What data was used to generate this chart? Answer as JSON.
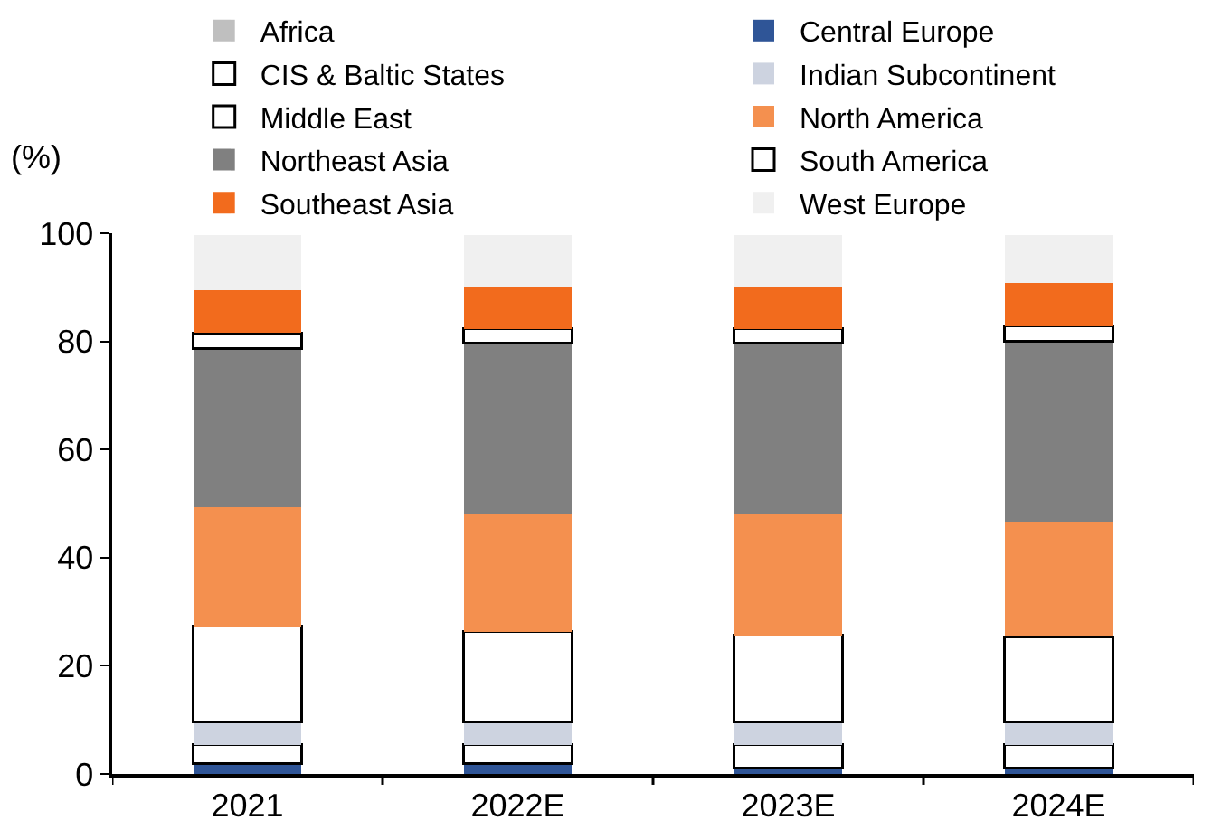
{
  "chart_data": {
    "type": "bar",
    "stacked": true,
    "ylabel": "(%)",
    "categories": [
      "2021",
      "2022E",
      "2023E",
      "2024E"
    ],
    "series": [
      {
        "name": "Africa",
        "color": "#bfbfbf",
        "values": [
          null,
          null,
          null,
          null
        ]
      },
      {
        "name": "Central Europe",
        "color": "#2f5597",
        "values": [
          2.0,
          2.0,
          1.1,
          1.1
        ]
      },
      {
        "name": "CIS & Baltic States",
        "color": "#ffffff",
        "values": [
          3.4,
          3.4,
          4.3,
          4.3
        ]
      },
      {
        "name": "Indian Subcontinent",
        "color": "#cdd3e0",
        "values": [
          4.3,
          4.3,
          4.3,
          4.3
        ]
      },
      {
        "name": "Middle East",
        "color": "#ffffff",
        "values": [
          17.6,
          16.6,
          15.9,
          15.7
        ]
      },
      {
        "name": "North America",
        "color": "#f4904f",
        "values": [
          22.1,
          21.7,
          22.4,
          21.3
        ]
      },
      {
        "name": "Northeast Asia",
        "color": "#808080",
        "values": [
          29.3,
          31.7,
          31.7,
          33.4
        ]
      },
      {
        "name": "South America",
        "color": "#ffffff",
        "values": [
          2.9,
          2.6,
          2.6,
          2.7
        ]
      },
      {
        "name": "Southeast Asia",
        "color": "#f26b1d",
        "values": [
          7.8,
          7.8,
          7.8,
          8.0
        ]
      },
      {
        "name": "West Europe",
        "color": "#f0f0f0",
        "values": [
          10.3,
          9.6,
          9.6,
          8.9
        ]
      }
    ],
    "ylim": [
      0,
      100
    ],
    "yticks": [
      0,
      20,
      40,
      60,
      80,
      100
    ],
    "legend": "top"
  }
}
